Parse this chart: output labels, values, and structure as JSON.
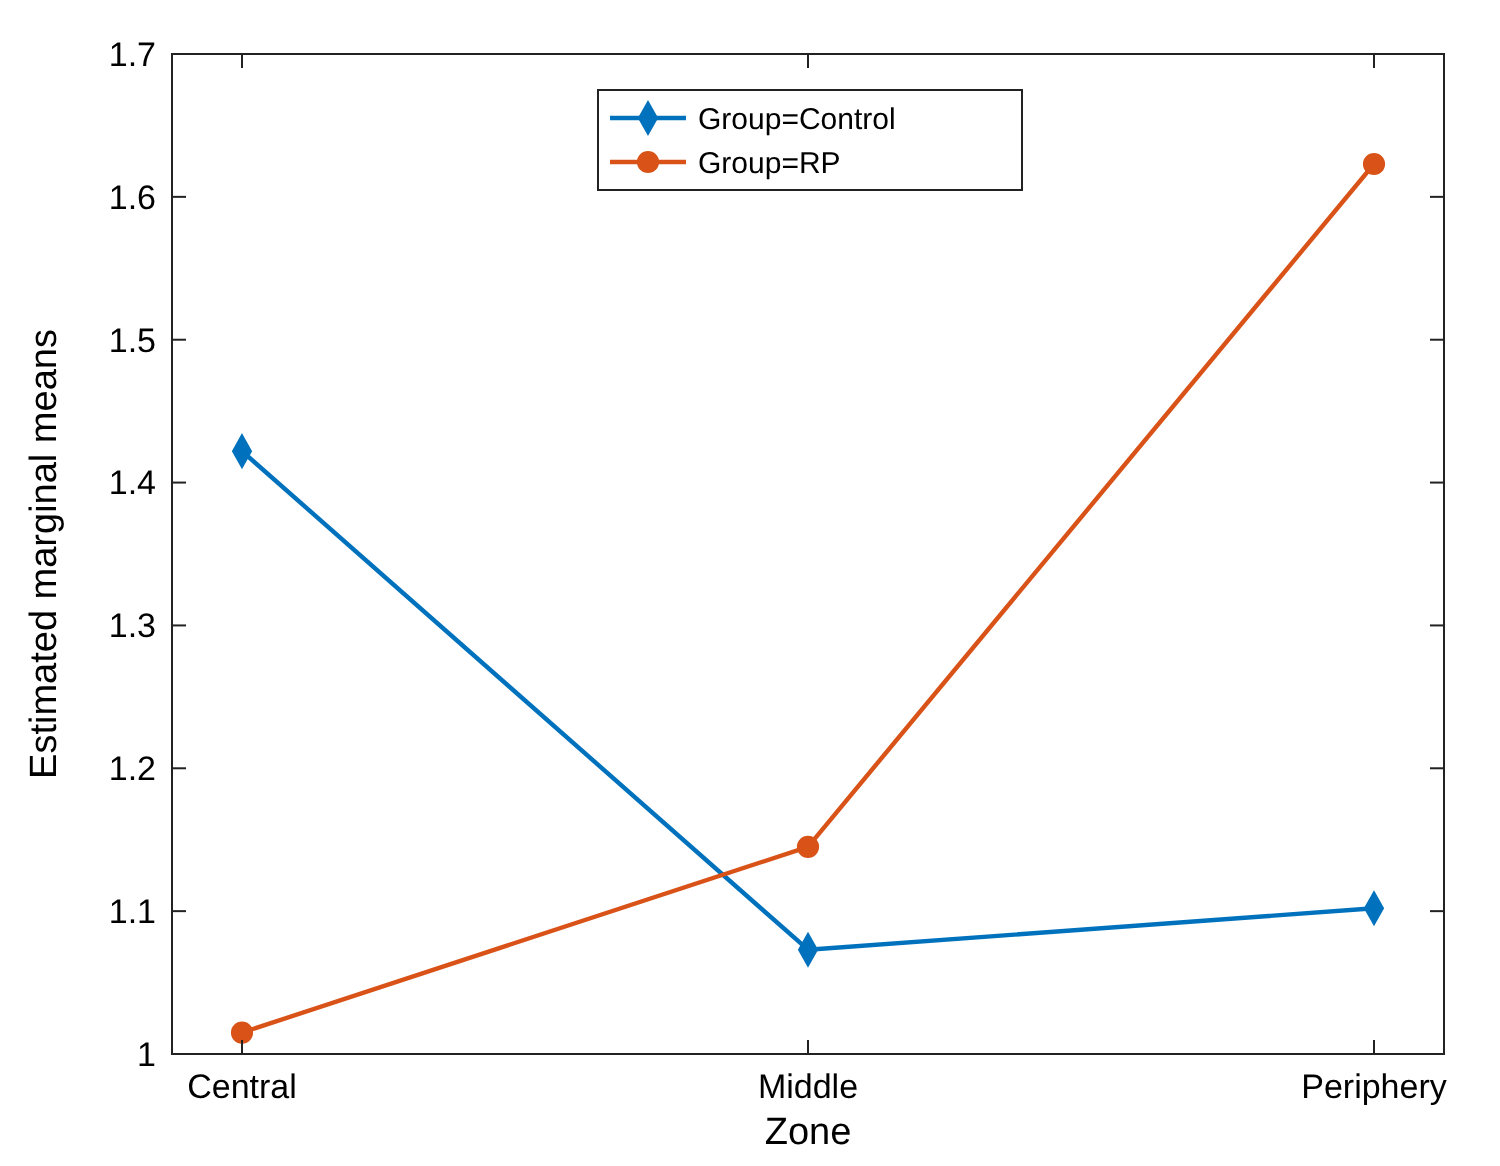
{
  "chart_data": {
    "type": "line",
    "xlabel": "Zone",
    "ylabel": "Estimated marginal means",
    "categories": [
      "Central",
      "Middle",
      "Periphery"
    ],
    "series": [
      {
        "name": "Group=Control",
        "color": "#0072bd",
        "values": [
          1.422,
          1.073,
          1.102
        ],
        "marker": "diamond"
      },
      {
        "name": "Group=RP",
        "color": "#d95319",
        "values": [
          1.015,
          1.145,
          1.623
        ],
        "marker": "circle"
      }
    ],
    "ylim": [
      1,
      1.7
    ],
    "yticks": [
      1,
      1.1,
      1.2,
      1.3,
      1.4,
      1.5,
      1.6,
      1.7
    ],
    "grid": false,
    "legend": "top",
    "line_style": "solid"
  }
}
